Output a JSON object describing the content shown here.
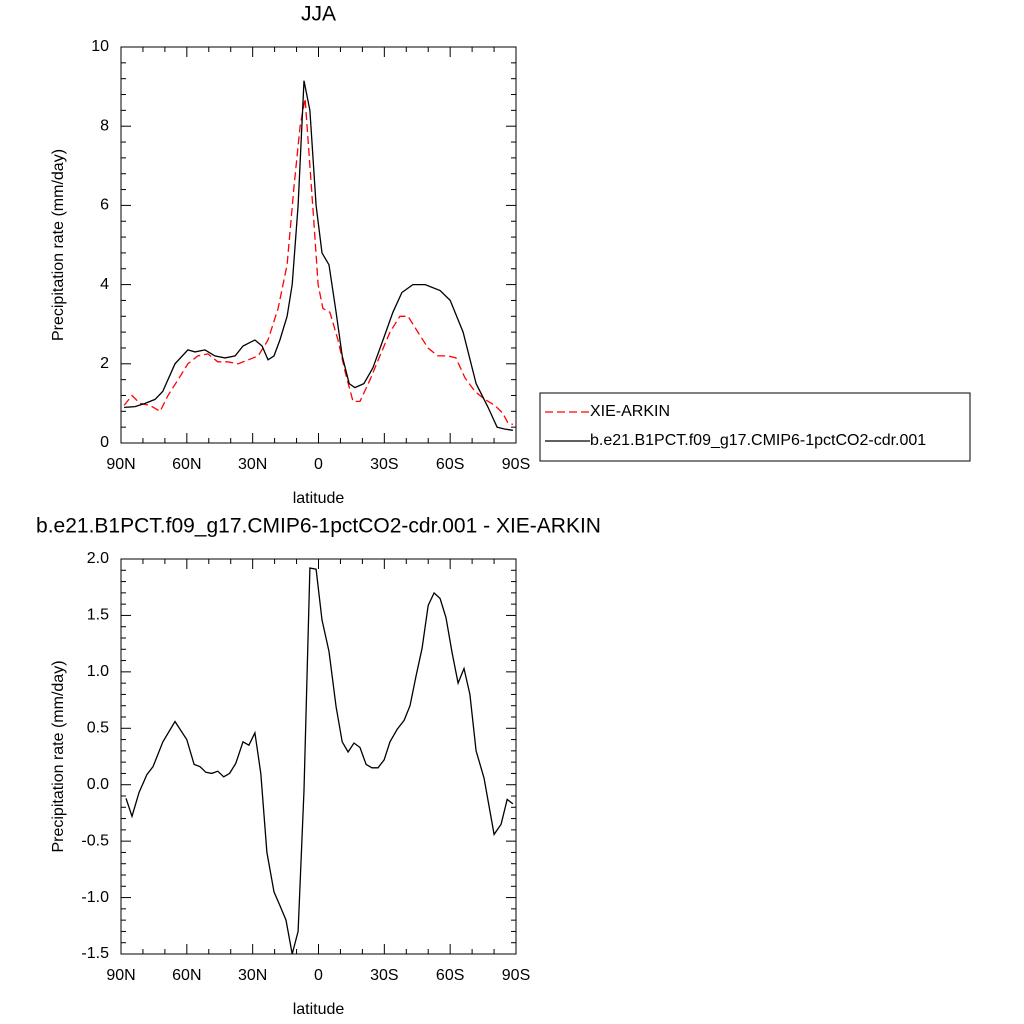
{
  "chart_data": [
    {
      "type": "line",
      "title": "JJA",
      "xlabel": "latitude",
      "ylabel": "Precipitation rate (mm/day)",
      "xlim": [
        90,
        -90
      ],
      "ylim": [
        0,
        10
      ],
      "xticks": [
        {
          "value": 90,
          "label": "90N"
        },
        {
          "value": 60,
          "label": "60N"
        },
        {
          "value": 30,
          "label": "30N"
        },
        0,
        {
          "value": -30,
          "label": "30S"
        },
        {
          "value": -60,
          "label": "60S"
        },
        {
          "value": -90,
          "label": "90S"
        }
      ],
      "yticks": [
        0,
        2,
        4,
        6,
        8,
        10
      ],
      "legend": "right",
      "series": [
        {
          "name": "XIE-ARKIN",
          "color": "#ff0000",
          "line_style": "dashed",
          "x": [
            88.6,
            85,
            81.4,
            76.8,
            72.2,
            68.6,
            64,
            59.5,
            55,
            50.4,
            45.9,
            41.4,
            36.6,
            32,
            27.5,
            23,
            18.4,
            14.3,
            11.1,
            8.4,
            6.1,
            3.9,
            2,
            0.2,
            -2,
            -5.2,
            -8.9,
            -12.1,
            -15.7,
            -18.9,
            -23.5,
            -28,
            -32.6,
            -37.1,
            -40.8,
            -45.3,
            -49.9,
            -54.4,
            -59,
            -62.6,
            -66.7,
            -71.3,
            -75.8,
            -80.4,
            -84,
            -86.4,
            -88.6
          ],
          "values": [
            0.95,
            1.2,
            1.0,
            0.95,
            0.8,
            1.2,
            1.6,
            2.0,
            2.2,
            2.25,
            2.05,
            2.05,
            2.0,
            2.1,
            2.2,
            2.6,
            3.4,
            4.5,
            6.5,
            8.0,
            8.7,
            7.0,
            5.5,
            4.0,
            3.4,
            3.3,
            2.6,
            1.8,
            1.05,
            1.05,
            1.6,
            2.2,
            2.8,
            3.2,
            3.2,
            2.8,
            2.4,
            2.2,
            2.2,
            2.15,
            1.65,
            1.3,
            1.1,
            0.95,
            0.75,
            0.5,
            0.47
          ]
        },
        {
          "name": "b.e21.B1PCT.f09_g17.CMIP6-1pctCO2-cdr.001",
          "color": "#000000",
          "line_style": "solid",
          "x": [
            88.6,
            83.6,
            79,
            74.5,
            71,
            65.4,
            59.5,
            56.3,
            51.7,
            47.2,
            42.6,
            38,
            34.4,
            29,
            25.7,
            23,
            20.3,
            17.6,
            14.3,
            12,
            9.3,
            6.6,
            3.9,
            1.1,
            -1.6,
            -4.8,
            -8,
            -10.8,
            -14,
            -16.6,
            -20.7,
            -24.8,
            -29.4,
            -33.9,
            -38,
            -43,
            -48.6,
            -55.4,
            -60,
            -65.9,
            -71.8,
            -77.3,
            -81.4,
            -85,
            -88.6
          ],
          "values": [
            0.9,
            0.92,
            1.0,
            1.1,
            1.3,
            2.0,
            2.35,
            2.3,
            2.35,
            2.2,
            2.15,
            2.2,
            2.45,
            2.6,
            2.45,
            2.1,
            2.2,
            2.6,
            3.2,
            4.0,
            6.0,
            9.15,
            8.4,
            6.0,
            4.8,
            4.5,
            3.3,
            2.2,
            1.5,
            1.4,
            1.5,
            1.9,
            2.6,
            3.3,
            3.8,
            4.0,
            4.0,
            3.85,
            3.6,
            2.8,
            1.5,
            0.9,
            0.4,
            0.35,
            0.32
          ]
        }
      ]
    },
    {
      "type": "line",
      "title": "b.e21.B1PCT.f09_g17.CMIP6-1pctCO2-cdr.001 - XIE-ARKIN",
      "xlabel": "latitude",
      "ylabel": "Precipitation rate (mm/day)",
      "xlim": [
        90,
        -90
      ],
      "ylim": [
        -1.5,
        2.0
      ],
      "xticks": [
        {
          "value": 90,
          "label": "90N"
        },
        {
          "value": 60,
          "label": "60N"
        },
        {
          "value": 30,
          "label": "30N"
        },
        0,
        {
          "value": -30,
          "label": "30S"
        },
        {
          "value": -60,
          "label": "60S"
        },
        {
          "value": -90,
          "label": "90S"
        }
      ],
      "yticks": [
        {
          "value": -1.5,
          "label": "-1.5"
        },
        {
          "value": -1.0,
          "label": "-1.0"
        },
        -0.5,
        {
          "value": 0,
          "label": "0.0"
        },
        0.5,
        {
          "value": 1.0,
          "label": "1.0"
        },
        1.5,
        {
          "value": 2.0,
          "label": "2.0"
        }
      ],
      "series": [
        {
          "color": "#000000",
          "line_style": "solid",
          "x": [
            87.7,
            85,
            81.8,
            78.2,
            75.4,
            70.9,
            65.4,
            60,
            56.7,
            54,
            51.3,
            48.6,
            45.9,
            43.2,
            40.5,
            37.7,
            34.4,
            31.7,
            29,
            26.3,
            23.5,
            20.3,
            17.6,
            14.8,
            12,
            9.3,
            6.6,
            3.9,
            1.1,
            -1.6,
            -4.8,
            -8,
            -10.8,
            -13.5,
            -16.2,
            -18.9,
            -21.7,
            -24.4,
            -27.1,
            -29.9,
            -32.6,
            -35.8,
            -39,
            -41.7,
            -44.5,
            -47.2,
            -50,
            -52.7,
            -55.4,
            -58.1,
            -60.9,
            -63.6,
            -66.3,
            -69,
            -71.8,
            -75.4,
            -80,
            -83.2,
            -86,
            -88.6
          ],
          "values": [
            -0.12,
            -0.28,
            -0.07,
            0.09,
            0.16,
            0.38,
            0.56,
            0.4,
            0.18,
            0.16,
            0.11,
            0.1,
            0.12,
            0.07,
            0.1,
            0.19,
            0.38,
            0.35,
            0.46,
            0.1,
            -0.6,
            -0.95,
            -1.07,
            -1.2,
            -1.5,
            -1.3,
            -0.05,
            1.92,
            1.91,
            1.46,
            1.18,
            0.69,
            0.38,
            0.29,
            0.37,
            0.33,
            0.18,
            0.15,
            0.15,
            0.22,
            0.38,
            0.49,
            0.57,
            0.7,
            0.97,
            1.21,
            1.59,
            1.7,
            1.65,
            1.48,
            1.17,
            0.9,
            1.03,
            0.8,
            0.3,
            0.06,
            -0.44,
            -0.35,
            -0.13,
            -0.17
          ]
        }
      ]
    }
  ]
}
